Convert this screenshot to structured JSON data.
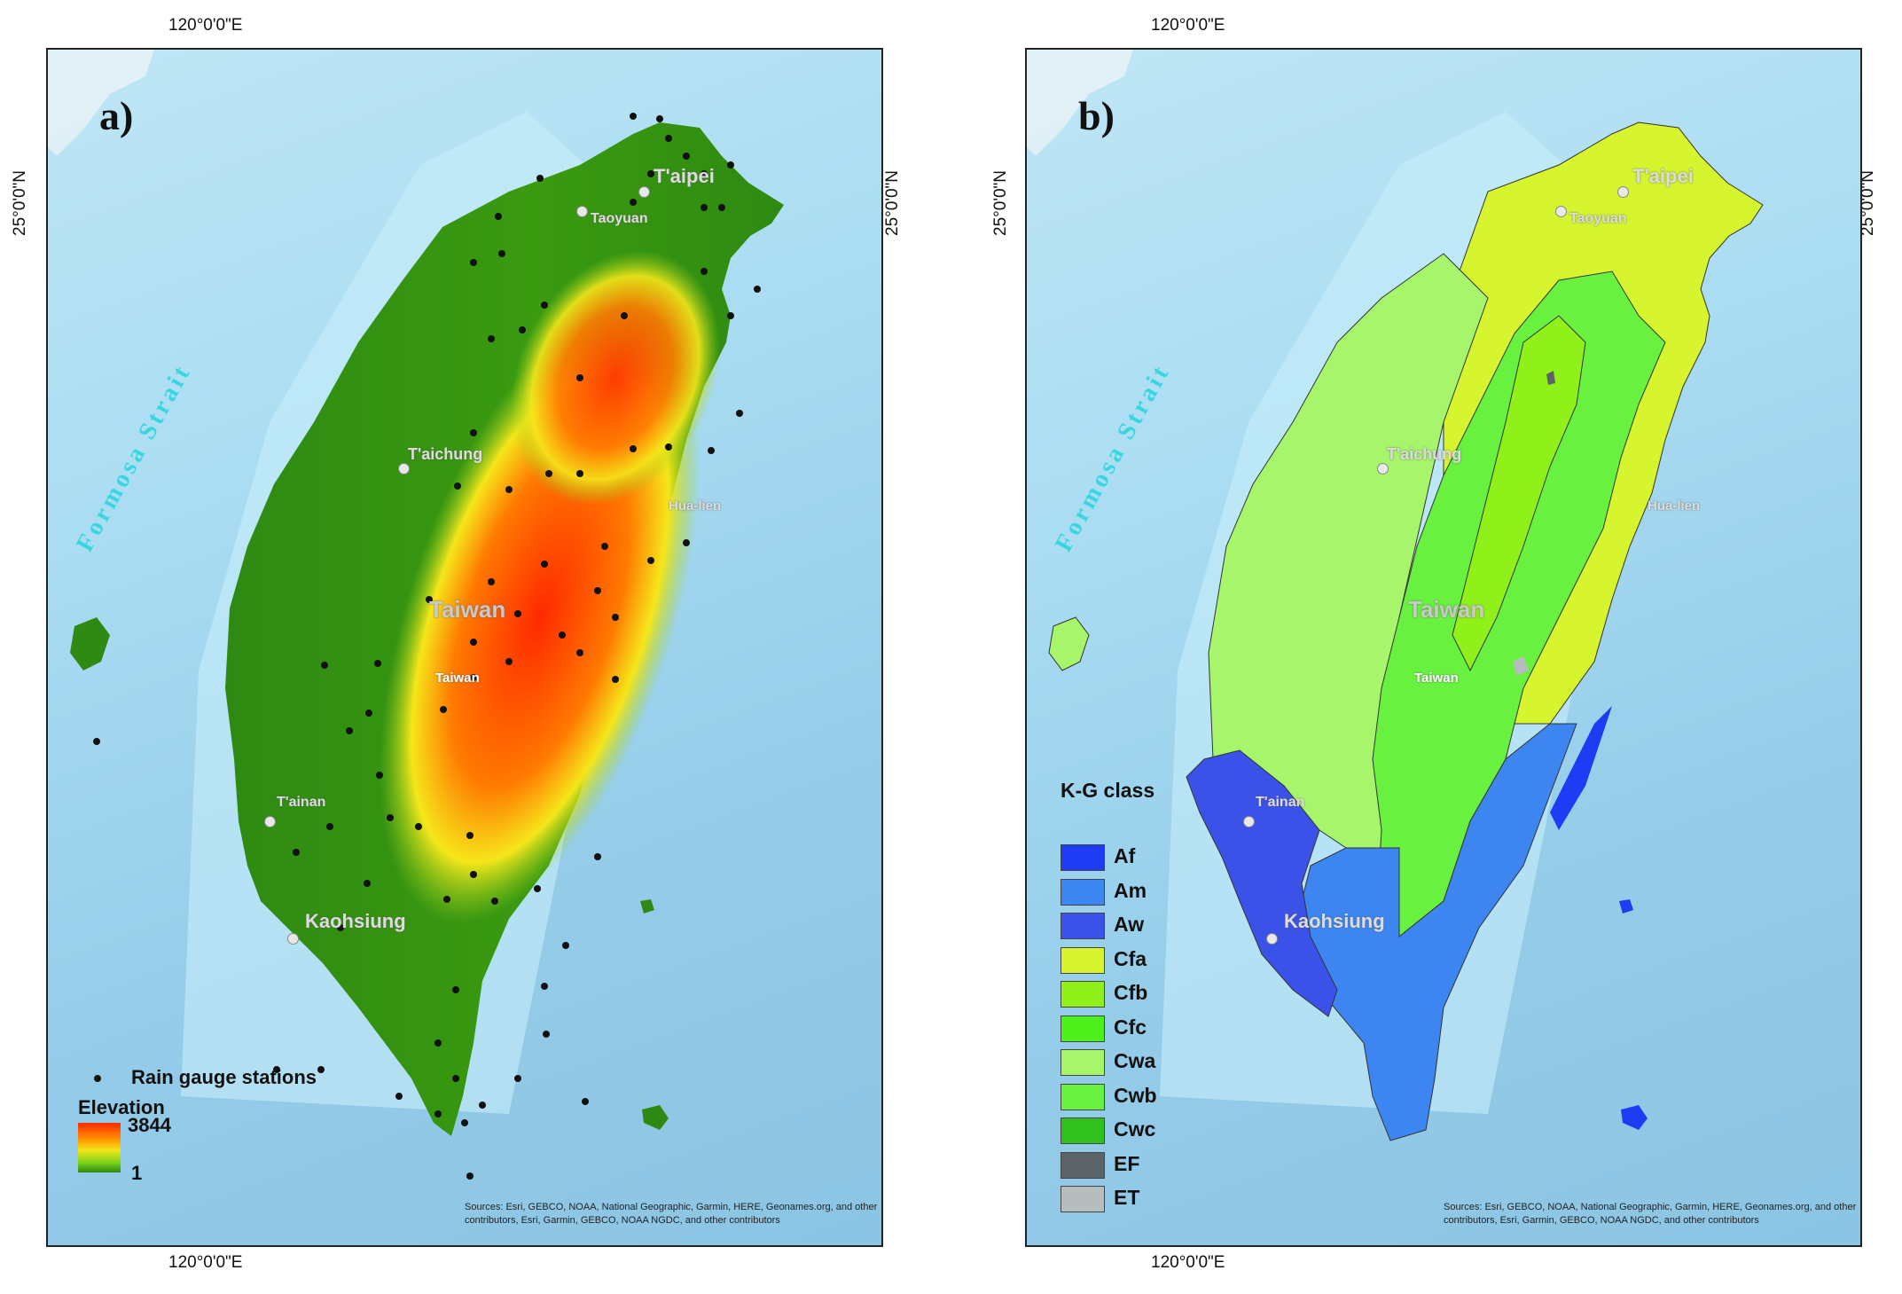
{
  "coordinates": {
    "lon_top": "120°0'0\"E",
    "lon_bottom": "120°0'0\"E",
    "lat_left": "25°0'0\"N",
    "lat_right": "25°0'0\"N"
  },
  "map_labels": {
    "strait": "Formosa Strait",
    "cities": {
      "taipei": "T'aipei",
      "taoyuan": "Taoyuan",
      "taichung": "T'aichung",
      "hualien": "Hua-lien",
      "taiwan": "Taiwan",
      "tainan": "T'ainan",
      "kaohsiung": "Kaohsiung"
    },
    "sources": "Sources: Esri, GEBCO, NOAA, National Geographic, Garmin, HERE, Geonames.org, and other contributors, Esri, Garmin, GEBCO, NOAA NGDC, and other contributors"
  },
  "panel_a": {
    "letter": "a)",
    "legend": {
      "stations_label": "Rain gauge stations",
      "elevation_title": "Elevation",
      "elevation_max": "3844",
      "elevation_min": "1"
    },
    "colors": {
      "station": "#111111",
      "low": "#2e8a12",
      "high": "#ff2a00"
    }
  },
  "panel_b": {
    "letter": "b)",
    "legend": {
      "title": "K-G class",
      "classes": [
        {
          "code": "Af",
          "color": "#1f3cf5"
        },
        {
          "code": "Am",
          "color": "#3d86f2"
        },
        {
          "code": "Aw",
          "color": "#3b52e8"
        },
        {
          "code": "Cfa",
          "color": "#d6f52e"
        },
        {
          "code": "Cfb",
          "color": "#8ff01a"
        },
        {
          "code": "Cfc",
          "color": "#4ef01c"
        },
        {
          "code": "Cwa",
          "color": "#a6f56a"
        },
        {
          "code": "Cwb",
          "color": "#68f23f"
        },
        {
          "code": "Cwc",
          "color": "#2fc21f"
        },
        {
          "code": "EF",
          "color": "#5d6468"
        },
        {
          "code": "ET",
          "color": "#b7bcbd"
        }
      ]
    }
  }
}
